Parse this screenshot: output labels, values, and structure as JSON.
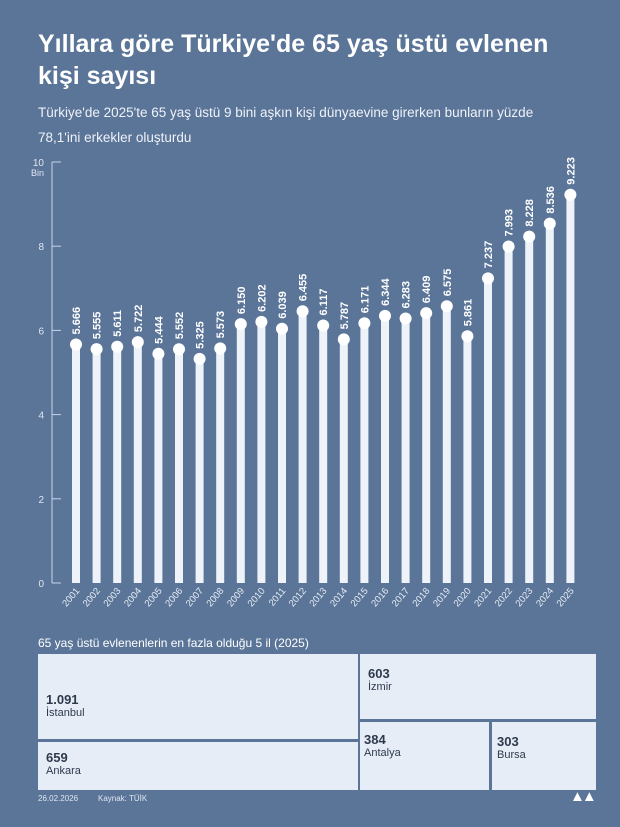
{
  "title": "Yıllara göre Türkiye'de 65 yaş üstü evlenen kişi sayısı",
  "subtitle": "Türkiye'de 2025'te 65 yaş üstü 9 bini aşkın kişi dünyaevine girerken bunların yüzde 78,1'ini erkekler oluşturdu",
  "chart_data": {
    "type": "bar",
    "ylabel": "Bin",
    "ylim": [
      0,
      10
    ],
    "yticks": [
      0,
      2,
      4,
      6,
      8,
      10
    ],
    "categories": [
      "2001",
      "2002",
      "2003",
      "2004",
      "2005",
      "2006",
      "2007",
      "2008",
      "2009",
      "2010",
      "2011",
      "2012",
      "2013",
      "2014",
      "2015",
      "2016",
      "2017",
      "2018",
      "2019",
      "2020",
      "2021",
      "2022",
      "2023",
      "2024",
      "2025"
    ],
    "values": [
      5.666,
      5.555,
      5.611,
      5.722,
      5.444,
      5.552,
      5.325,
      5.573,
      6.15,
      6.202,
      6.039,
      6.455,
      6.117,
      5.787,
      6.171,
      6.344,
      6.283,
      6.409,
      6.575,
      5.861,
      7.237,
      7.993,
      8.228,
      8.536,
      9.223
    ],
    "labels": [
      "5.666",
      "5.555",
      "5.611",
      "5.722",
      "5.444",
      "5.552",
      "5.325",
      "5.573",
      "6.150",
      "6.202",
      "6.039",
      "6.455",
      "6.117",
      "5.787",
      "6.171",
      "6.344",
      "6.283",
      "6.409",
      "6.575",
      "5.861",
      "7.237",
      "7.993",
      "8.228",
      "8.536",
      "9.223"
    ],
    "grid": false
  },
  "treemap": {
    "title": "65 yaş üstü evlenenlerin en fazla olduğu 5 il (2025)",
    "items": [
      {
        "name": "İstanbul",
        "value": "1.091"
      },
      {
        "name": "Ankara",
        "value": "659"
      },
      {
        "name": "İzmir",
        "value": "603"
      },
      {
        "name": "Antalya",
        "value": "384"
      },
      {
        "name": "Bursa",
        "value": "303"
      }
    ]
  },
  "footer": {
    "date": "26.02.2026",
    "source": "Kaynak: TÜİK",
    "logo": "AA"
  },
  "colors": {
    "background": "#5b7599",
    "bar": "#eef3fa",
    "cell": "#e6edf7"
  }
}
